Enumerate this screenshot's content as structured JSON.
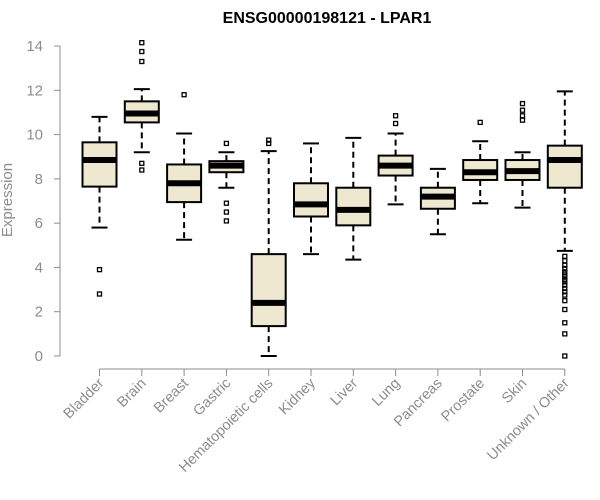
{
  "chart_data": {
    "type": "box",
    "title": "ENSG00000198121 - LPAR1",
    "ylabel": "Expression",
    "ylim": [
      0,
      14
    ],
    "yticks": [
      0,
      2,
      4,
      6,
      8,
      10,
      12,
      14
    ],
    "box_color": "#efe8d0",
    "categories": [
      "Bladder",
      "Brain",
      "Breast",
      "Gastric",
      "Hematopoietic cells",
      "Kidney",
      "Liver",
      "Lung",
      "Pancreas",
      "Prostate",
      "Skin",
      "Unknown / Other"
    ],
    "boxes": [
      {
        "q1": 7.65,
        "median": 8.85,
        "q3": 9.65,
        "whisker_low": 5.8,
        "whisker_high": 10.8,
        "outliers": [
          3.9,
          2.8
        ]
      },
      {
        "q1": 10.55,
        "median": 10.95,
        "q3": 11.5,
        "whisker_low": 9.2,
        "whisker_high": 12.05,
        "outliers": [
          14.15,
          13.75,
          13.3,
          8.7,
          8.4
        ]
      },
      {
        "q1": 6.95,
        "median": 7.8,
        "q3": 8.65,
        "whisker_low": 5.25,
        "whisker_high": 10.05,
        "outliers": [
          11.8
        ]
      },
      {
        "q1": 8.3,
        "median": 8.6,
        "q3": 8.8,
        "whisker_low": 7.6,
        "whisker_high": 9.2,
        "outliers": [
          9.6,
          6.9,
          6.5,
          6.1
        ]
      },
      {
        "q1": 1.35,
        "median": 2.4,
        "q3": 4.6,
        "whisker_low": 0.0,
        "whisker_high": 9.25,
        "outliers": [
          9.6,
          9.75
        ]
      },
      {
        "q1": 6.3,
        "median": 6.85,
        "q3": 7.8,
        "whisker_low": 4.6,
        "whisker_high": 9.6,
        "outliers": []
      },
      {
        "q1": 5.9,
        "median": 6.6,
        "q3": 7.6,
        "whisker_low": 4.35,
        "whisker_high": 9.85,
        "outliers": []
      },
      {
        "q1": 8.15,
        "median": 8.6,
        "q3": 9.05,
        "whisker_low": 6.85,
        "whisker_high": 10.05,
        "outliers": [
          10.5,
          10.85
        ]
      },
      {
        "q1": 6.65,
        "median": 7.2,
        "q3": 7.6,
        "whisker_low": 5.5,
        "whisker_high": 8.45,
        "outliers": []
      },
      {
        "q1": 7.95,
        "median": 8.3,
        "q3": 8.85,
        "whisker_low": 6.9,
        "whisker_high": 9.7,
        "outliers": [
          10.55
        ]
      },
      {
        "q1": 7.95,
        "median": 8.35,
        "q3": 8.85,
        "whisker_low": 6.7,
        "whisker_high": 9.2,
        "outliers": [
          11.4,
          11.1,
          10.85,
          10.65
        ]
      },
      {
        "q1": 7.6,
        "median": 8.85,
        "q3": 9.5,
        "whisker_low": 4.75,
        "whisker_high": 11.95,
        "outliers": [
          4.5,
          4.3,
          4.1,
          3.95,
          3.8,
          3.7,
          3.6,
          3.45,
          3.35,
          3.2,
          3.05,
          2.9,
          2.75,
          2.5,
          2.1,
          1.5,
          1.0,
          0.0
        ]
      }
    ]
  }
}
